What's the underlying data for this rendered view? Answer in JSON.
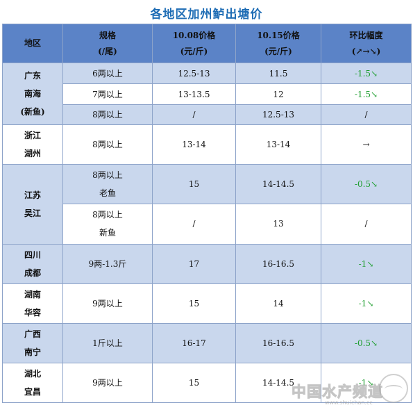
{
  "title": "各地区加州鲈出塘价",
  "header": {
    "region": "地区",
    "spec": [
      "规格",
      "(/尾)"
    ],
    "price1": [
      "10.08价格",
      "(元/斤)"
    ],
    "price2": [
      "10.15价格",
      "(元/斤)"
    ],
    "change": [
      "环比幅度",
      "(↗→↘)"
    ]
  },
  "rows": {
    "r1": {
      "region": [
        "广东",
        "南海",
        "(新鱼)"
      ],
      "spec": "6两以上",
      "p1": "12.5-13",
      "p2": "11.5",
      "change": "-1.5↘"
    },
    "r2": {
      "spec": "7两以上",
      "p1": "13-13.5",
      "p2": "12",
      "change": "-1.5↘"
    },
    "r3": {
      "spec": "8两以上",
      "p1": "/",
      "p2": "12.5-13",
      "change": "/"
    },
    "r4": {
      "region": [
        "浙江",
        "湖州"
      ],
      "spec": "8两以上",
      "p1": "13-14",
      "p2": "13-14",
      "change": "→"
    },
    "r5": {
      "region": [
        "江苏",
        "吴江"
      ],
      "spec": [
        "8两以上",
        "老鱼"
      ],
      "p1": "15",
      "p2": "14-14.5",
      "change": "-0.5↘"
    },
    "r6": {
      "spec": [
        "8两以上",
        "新鱼"
      ],
      "p1": "/",
      "p2": "13",
      "change": "/"
    },
    "r7": {
      "region": [
        "四川",
        "成都"
      ],
      "spec": "9两-1.3斤",
      "p1": "17",
      "p2": "16-16.5",
      "change": "-1↘"
    },
    "r8": {
      "region": [
        "湖南",
        "华容"
      ],
      "spec": "9两以上",
      "p1": "15",
      "p2": "14",
      "change": "-1↘"
    },
    "r9": {
      "region": [
        "广西",
        "南宁"
      ],
      "spec": "1斤以上",
      "p1": "16-17",
      "p2": "16-16.5",
      "change": "-0.5↘"
    },
    "r10": {
      "region": [
        "湖北",
        "宜昌"
      ],
      "spec": "9两以上",
      "p1": "15",
      "p2": "14-14.5",
      "change": "-1↘"
    }
  },
  "watermark": {
    "text": "中国水产频道",
    "sub": "www.shuichan.cc"
  },
  "colors": {
    "header": "#5b83c7",
    "shade": "#c9d7ed",
    "title": "#1f6db5",
    "down": "#1e9e2f"
  }
}
